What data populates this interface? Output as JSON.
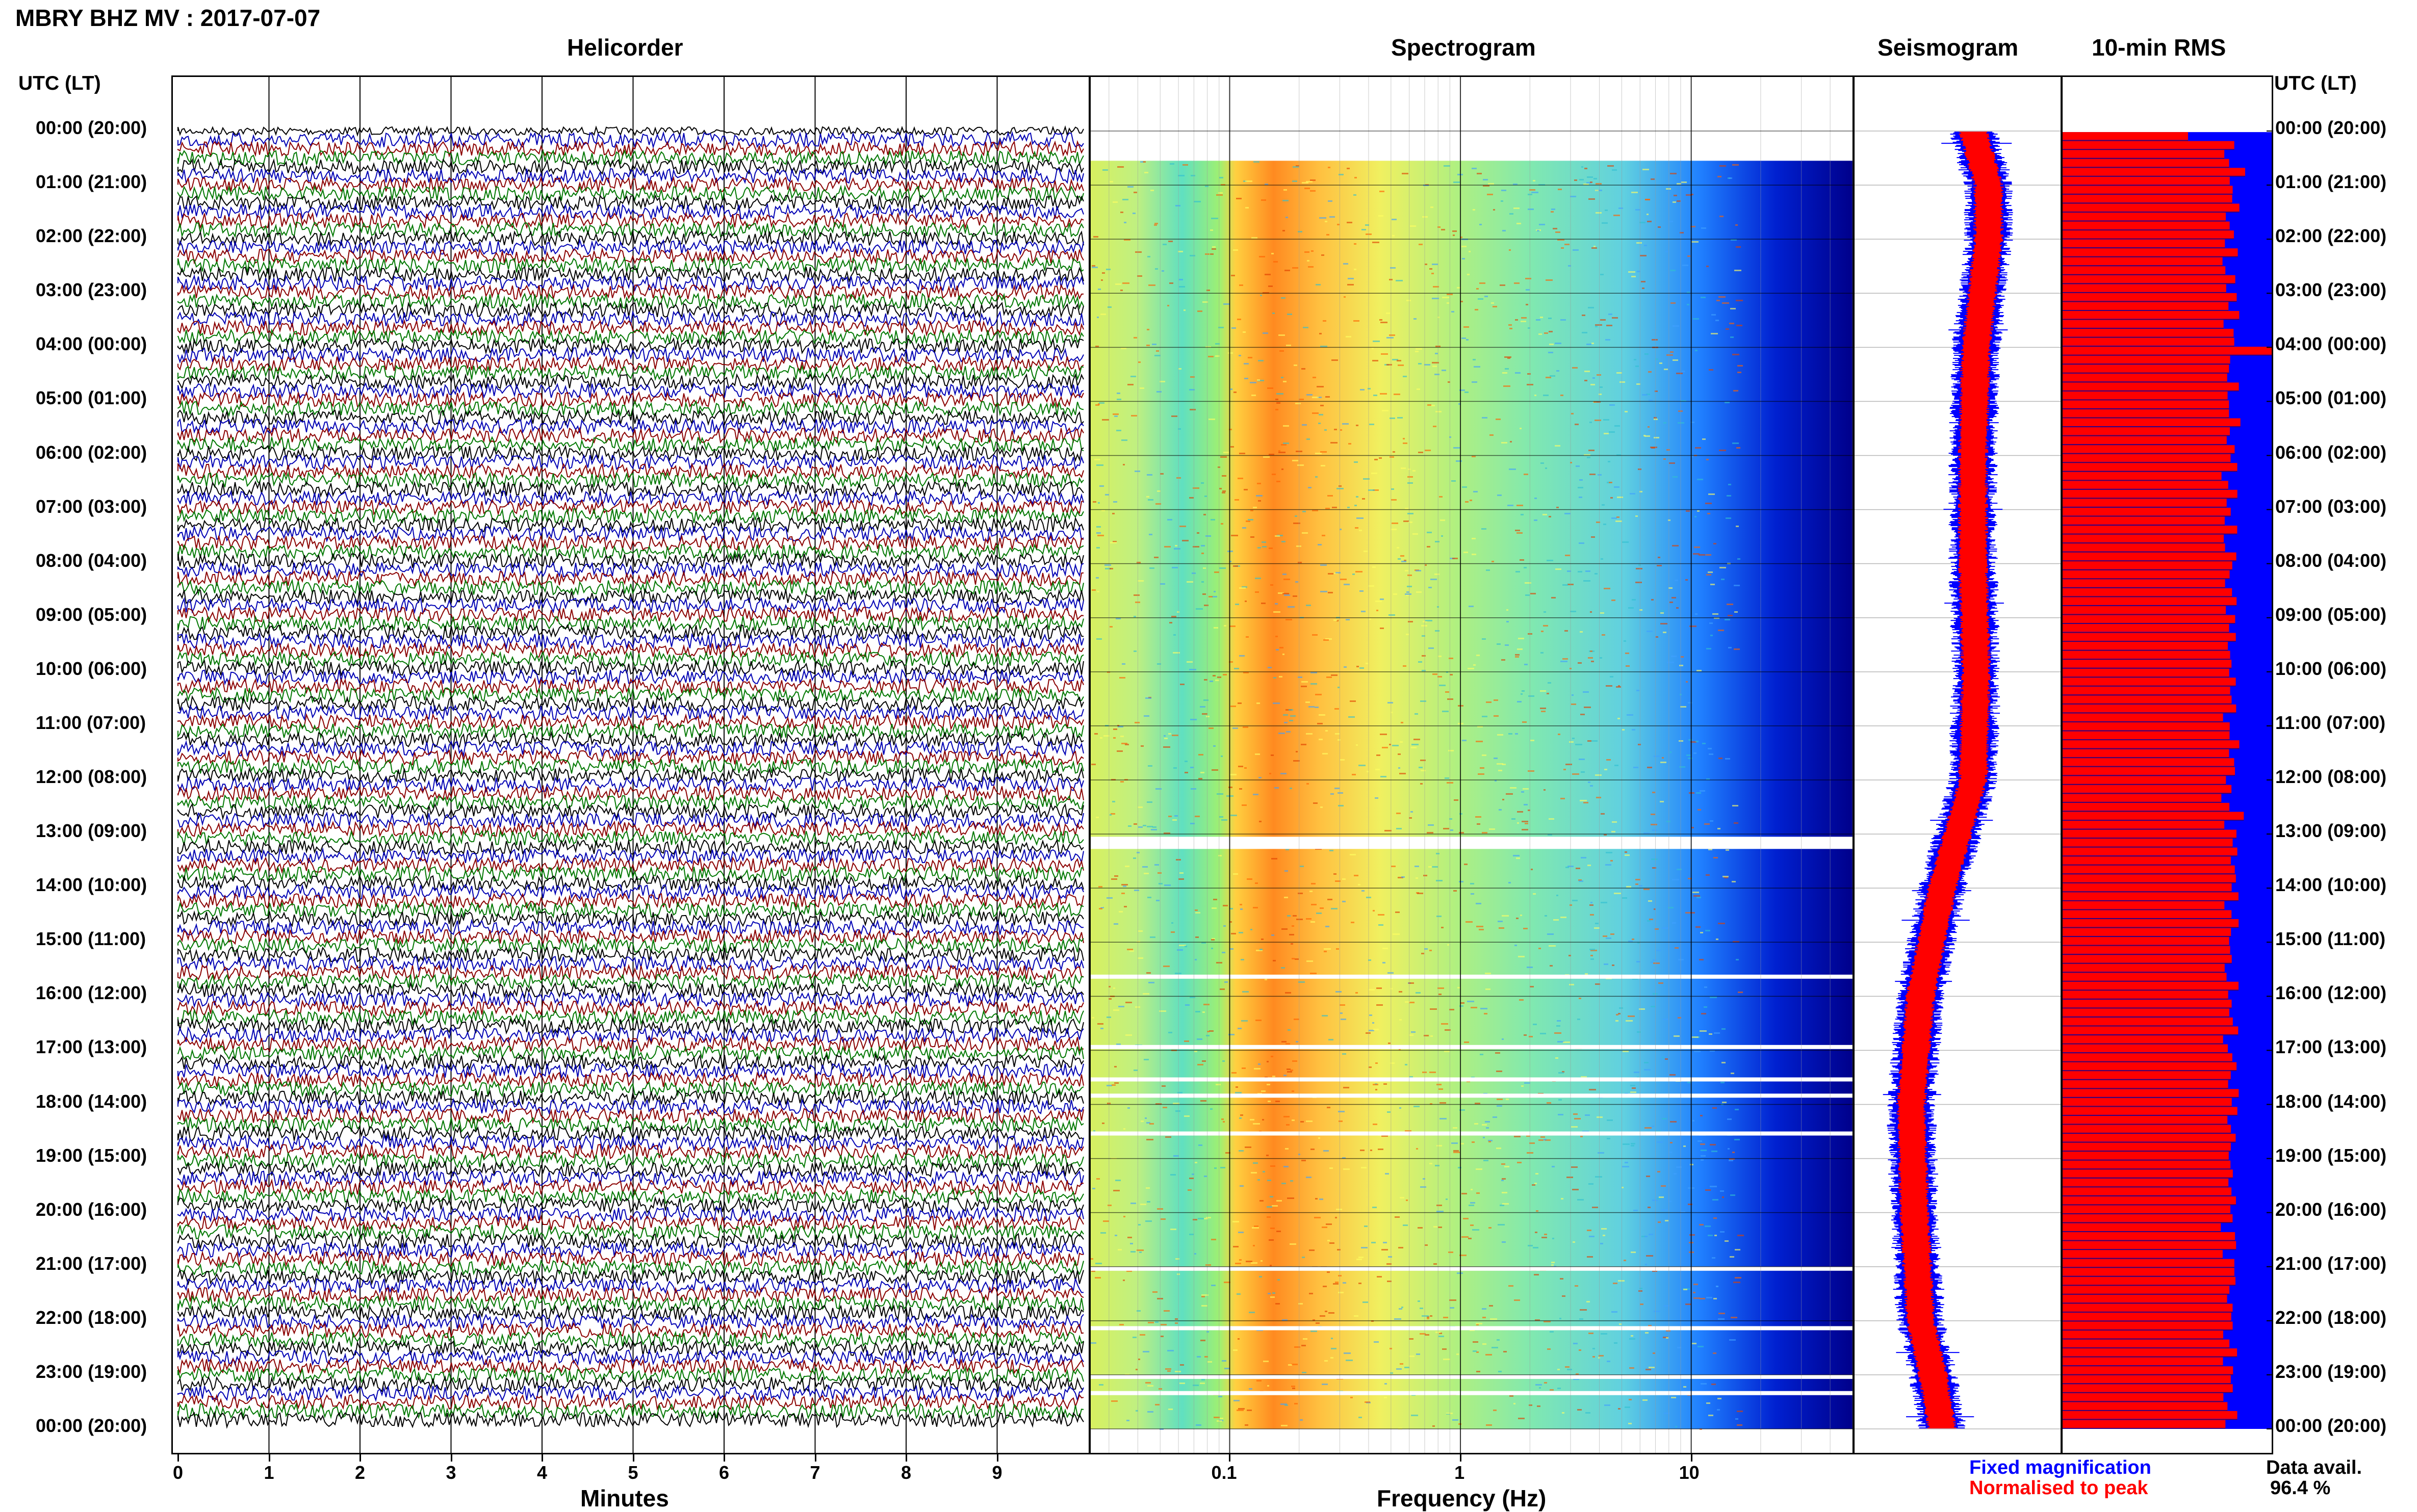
{
  "page": {
    "title": "MBRY BHZ MV : 2017-07-07"
  },
  "headers": {
    "helicorder": "Helicorder",
    "spectrogram": "Spectrogram",
    "seismogram": "Seismogram",
    "rms": "10-min RMS",
    "time_axis_left": "UTC (LT)",
    "time_axis_right": "UTC (LT)"
  },
  "legend": {
    "fixed": "Fixed magnification",
    "normalised": "Normalised to peak",
    "fixed_color": "#0000ff",
    "normalised_color": "#ff0000"
  },
  "data_availability": {
    "label": "Data avail.",
    "value": "96.4 %"
  },
  "colors": {
    "trace_cycle": [
      "#000000",
      "#0000b4",
      "#8b0000",
      "#007800"
    ],
    "spectrogram_ramp": [
      "#00008b",
      "#0000ff",
      "#00b4ff",
      "#40e0d0",
      "#80ff80",
      "#ffff00",
      "#ffa500",
      "#ff4500"
    ],
    "rms_bar": "#ff0000",
    "rms_background": "#0000ff"
  },
  "chart_data": [
    {
      "type": "line",
      "name": "helicorder",
      "title": "Helicorder",
      "xlabel": "Minutes",
      "x_ticks": [
        "0",
        "1",
        "2",
        "3",
        "4",
        "5",
        "6",
        "7",
        "8",
        "9"
      ],
      "xlim": [
        0,
        10
      ],
      "y_ticks_left": [
        "00:00 (20:00)",
        "01:00 (21:00)",
        "02:00 (22:00)",
        "03:00 (23:00)",
        "04:00 (00:00)",
        "05:00 (01:00)",
        "06:00 (02:00)",
        "07:00 (03:00)",
        "08:00 (04:00)",
        "09:00 (05:00)",
        "10:00 (06:00)",
        "11:00 (07:00)",
        "12:00 (08:00)",
        "13:00 (09:00)",
        "14:00 (10:00)",
        "15:00 (11:00)",
        "16:00 (12:00)",
        "17:00 (13:00)",
        "18:00 (14:00)",
        "19:00 (15:00)",
        "20:00 (16:00)",
        "21:00 (17:00)",
        "22:00 (18:00)",
        "23:00 (19:00)",
        "00:00 (20:00)"
      ],
      "rows": 145,
      "minutes_per_row": 10
    },
    {
      "type": "heatmap",
      "name": "spectrogram",
      "title": "Spectrogram",
      "xlabel": "Frequency (Hz)",
      "x_ticks": [
        "0.1",
        "1",
        "10"
      ],
      "x_tick_values": [
        0.1,
        1,
        10
      ],
      "xscale": "log",
      "xlim": [
        0.025,
        50
      ],
      "energy_band_hz": [
        0.2,
        0.6
      ],
      "gaps_utc_hours": [
        0.0,
        0.3,
        13.0,
        13.2,
        15.6,
        16.9,
        17.5,
        17.8,
        18.5,
        21.0,
        22.1,
        23.0,
        23.3
      ]
    },
    {
      "type": "area",
      "name": "seismogram",
      "title": "Seismogram",
      "series": [
        "Fixed magnification",
        "Normalised to peak"
      ],
      "description_values": {
        "hours": [
          0,
          1,
          2,
          3,
          4,
          6,
          8,
          10,
          12,
          13,
          14,
          16,
          18,
          20,
          22,
          23,
          24
        ],
        "center_offset": [
          0.05,
          0.1,
          0.1,
          0.08,
          0.06,
          0.05,
          0.05,
          0.06,
          0.05,
          0.0,
          -0.05,
          -0.12,
          -0.15,
          -0.14,
          -0.12,
          -0.08,
          -0.05
        ]
      }
    },
    {
      "type": "bar",
      "name": "rms",
      "title": "10-min RMS",
      "orientation": "horizontal",
      "bins": 145,
      "values_pattern": [
        0.8,
        0.82,
        0.78,
        0.8,
        0.85,
        0.79,
        0.81,
        0.8,
        0.83,
        0.78,
        0.8,
        0.82
      ],
      "peak_value_at_hour": 4.0,
      "peak_value": 1.0
    }
  ]
}
